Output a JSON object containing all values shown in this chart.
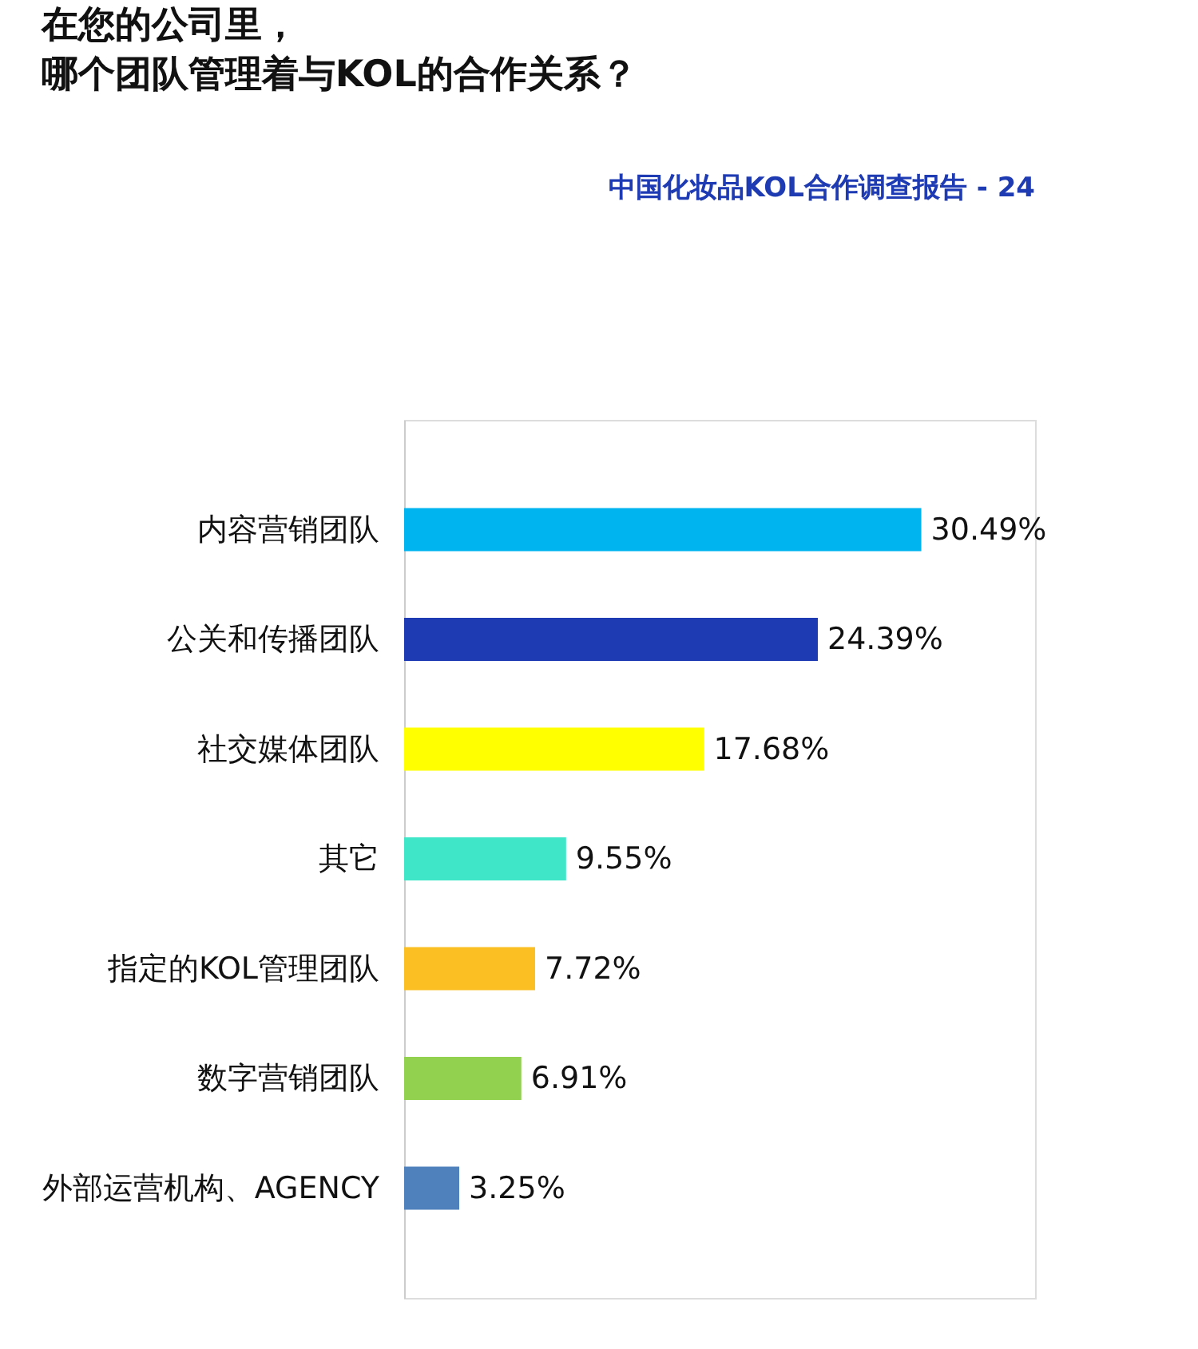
{
  "chart_data": {
    "type": "bar",
    "orientation": "horizontal",
    "title": "在您的公司里，",
    "subtitle": "哪个团队管理着与KOL的合作关系？",
    "annotations": [
      "中国化妆品KOL合作调查报告 - 24"
    ],
    "categories": [
      "内容营销团队",
      "公关和传播团队",
      "社交媒体团队",
      "其它",
      "指定的KOL管理团队",
      "数字营销团队",
      "外部运营机构、AGENCY"
    ],
    "values": [
      30.49,
      24.39,
      17.68,
      9.55,
      7.72,
      6.91,
      3.25
    ],
    "value_labels": [
      "30.49%",
      "24.39%",
      "17.68%",
      "9.55%",
      "7.72%",
      "6.91%",
      "3.25%"
    ],
    "colors": [
      "#00b4f0",
      "#1f3bb3",
      "#ffff00",
      "#40e6c8",
      "#fbbf24",
      "#92d050",
      "#4f81bd"
    ],
    "legend": false,
    "grid": false
  }
}
